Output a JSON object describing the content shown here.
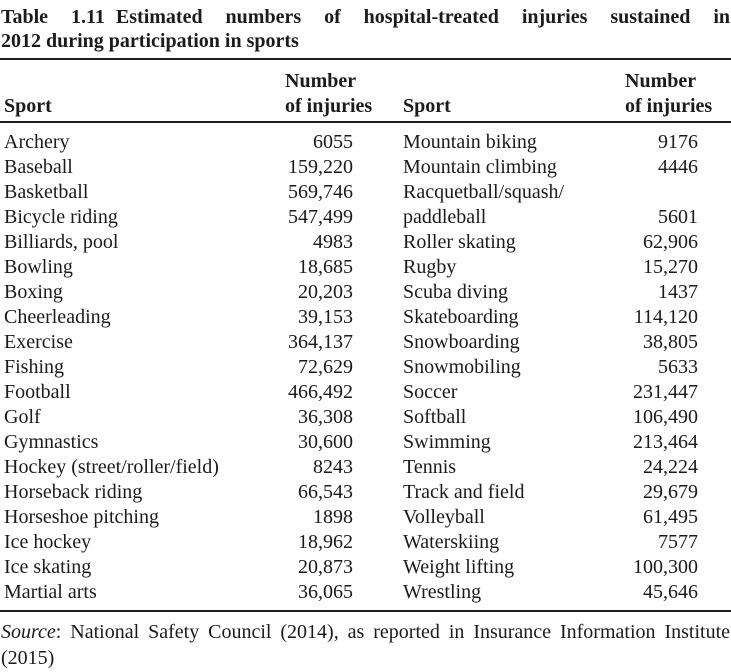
{
  "caption": {
    "label": "Table 1.11",
    "line1_rest": "Estimated numbers of hospital-treated injuries sustained in",
    "line2": "2012 during participation in sports"
  },
  "header": {
    "sport_left": "Sport",
    "number_line1_left": "Number",
    "number_line2_left": "of injuries",
    "sport_right": "Sport",
    "number_line1_right": "Number",
    "number_line2_right": "of injuries"
  },
  "rows": [
    [
      "Archery",
      "6055",
      "Mountain biking",
      "9176"
    ],
    [
      "Baseball",
      "159,220",
      "Mountain climbing",
      "4446"
    ],
    [
      "Basketball",
      "569,746",
      "Racquetball/squash/",
      ""
    ],
    [
      "Bicycle riding",
      "547,499",
      "paddleball",
      "5601"
    ],
    [
      "Billiards, pool",
      "4983",
      "Roller skating",
      "62,906"
    ],
    [
      "Bowling",
      "18,685",
      "Rugby",
      "15,270"
    ],
    [
      "Boxing",
      "20,203",
      "Scuba diving",
      "1437"
    ],
    [
      "Cheerleading",
      "39,153",
      "Skateboarding",
      "114,120"
    ],
    [
      "Exercise",
      "364,137",
      "Snowboarding",
      "38,805"
    ],
    [
      "Fishing",
      "72,629",
      "Snowmobiling",
      "5633"
    ],
    [
      "Football",
      "466,492",
      "Soccer",
      "231,447"
    ],
    [
      "Golf",
      "36,308",
      "Softball",
      "106,490"
    ],
    [
      "Gymnastics",
      "30,600",
      "Swimming",
      "213,464"
    ],
    [
      "Hockey (street/roller/field)",
      "8243",
      "Tennis",
      "24,224"
    ],
    [
      "Horseback riding",
      "66,543",
      "Track and field",
      "29,679"
    ],
    [
      "Horseshoe pitching",
      "1898",
      "Volleyball",
      "61,495"
    ],
    [
      "Ice hockey",
      "18,962",
      "Waterskiing",
      "7577"
    ],
    [
      "Ice skating",
      "20,873",
      "Weight lifting",
      "100,300"
    ],
    [
      "Martial arts",
      "36,065",
      "Wrestling",
      "45,646"
    ]
  ],
  "source": {
    "prefix": "Source",
    "text": ": National Safety Council (2014), as reported in Insurance Information Institute (2015)"
  }
}
